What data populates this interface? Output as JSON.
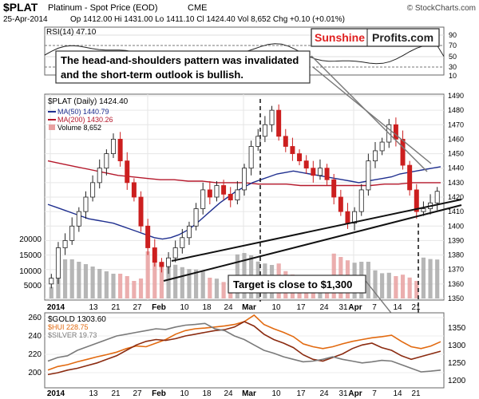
{
  "header": {
    "symbol": "$PLAT",
    "name": "Platinum - Spot Price (EOD)",
    "exchange": "CME",
    "watermark": "© StockCharts.com",
    "date": "25-Apr-2014",
    "quote": "Op 1412.00  Hi 1431.00  Lo 1411.10  Cl 1424.40  Vol 8,652  Chg +0.10 (+0.01%)"
  },
  "rsi_panel": {
    "label": "RSI(14) 47.10",
    "levels": [
      "90",
      "70",
      "50",
      "30",
      "10"
    ],
    "branding": {
      "part1": "Sunshine",
      "part2": "Profits.com"
    }
  },
  "annotations": {
    "top_line1": "The head-and-shoulders pattern was invalidated",
    "top_line2": "and the short-term outlook is bullish.",
    "target": "Target is close to $1,300"
  },
  "price_panel": {
    "legend_title": "$PLAT (Daily) 1424.40",
    "legend_ma50": "MA(50) 1440.79",
    "legend_ma200": "MA(200) 1430.26",
    "legend_volume": "Volume 8,652",
    "volume_ticks": [
      "20000",
      "15000",
      "10000",
      "5000"
    ]
  },
  "x_axis": {
    "labels": [
      "2014",
      "13",
      "21",
      "27",
      "Feb",
      "10",
      "18",
      "24",
      "Mar",
      "10",
      "17",
      "24",
      "31",
      "Apr",
      "7",
      "14",
      "21"
    ]
  },
  "bottom_panel": {
    "legend_gold": "$GOLD 1303.60",
    "legend_hui": "$HUI 228.75",
    "legend_silver": "$SILVER 19.73",
    "left_ticks": [
      "260",
      "240",
      "220",
      "200"
    ],
    "right_ticks": [
      "1350",
      "1300",
      "1250",
      "1200"
    ]
  },
  "colors": {
    "up_candle": "#ffffff",
    "down_candle": "#cc1f1f",
    "ma50": "#1f2f8f",
    "ma200": "#b5182b",
    "volume_down": "#e8a0a0",
    "volume_up": "#a9a9a9",
    "gold": "#e26a10",
    "hui": "#8b2b10",
    "silver": "#7a7a7a",
    "brand_red": "#e02020"
  },
  "chart_data": {
    "type": "line",
    "title": "$PLAT Platinum - Spot Price (EOD) CME",
    "date_range": [
      "2014-01-02",
      "2014-04-25"
    ],
    "price_ylim": [
      1350,
      1490
    ],
    "price_ticks": [
      1350,
      1360,
      1370,
      1380,
      1390,
      1400,
      1410,
      1420,
      1430,
      1440,
      1450,
      1460,
      1470,
      1480,
      1490
    ],
    "close": [
      1364,
      1385,
      1390,
      1400,
      1410,
      1420,
      1430,
      1440,
      1450,
      1460,
      1445,
      1430,
      1420,
      1400,
      1385,
      1375,
      1372,
      1378,
      1385,
      1392,
      1400,
      1412,
      1425,
      1420,
      1428,
      1422,
      1418,
      1425,
      1440,
      1455,
      1462,
      1470,
      1480,
      1462,
      1455,
      1450,
      1445,
      1440,
      1435,
      1440,
      1432,
      1420,
      1410,
      1402,
      1410,
      1425,
      1445,
      1452,
      1458,
      1470,
      1460,
      1442,
      1425,
      1410,
      1412,
      1416,
      1424
    ],
    "ma50": [
      1415,
      1413,
      1411,
      1409,
      1407,
      1405,
      1404,
      1403,
      1402,
      1400,
      1398,
      1396,
      1394,
      1392,
      1391,
      1392,
      1394,
      1397,
      1401,
      1406,
      1411,
      1416,
      1420,
      1424,
      1427,
      1430,
      1432,
      1434,
      1436,
      1437,
      1438,
      1437,
      1436,
      1435,
      1434,
      1433,
      1432,
      1431,
      1430,
      1431,
      1432,
      1433,
      1434,
      1436,
      1437,
      1438,
      1439,
      1440,
      1441
    ],
    "ma200": [
      1445,
      1443,
      1441,
      1439,
      1437,
      1435,
      1434,
      1433,
      1432,
      1432,
      1431,
      1431,
      1430,
      1430,
      1430,
      1429,
      1429,
      1429,
      1428,
      1428,
      1428,
      1428,
      1428,
      1428,
      1429,
      1429,
      1430,
      1430,
      1430
    ],
    "rsi_levels": [
      90,
      70,
      50,
      30,
      10
    ],
    "rsi_last": 47.1,
    "volume_ticks": [
      20000,
      15000,
      10000,
      5000
    ],
    "lower_panel": {
      "left_ylim": [
        190,
        270
      ],
      "right_ylim": [
        1180,
        1380
      ],
      "series": [
        {
          "name": "$GOLD",
          "last": 1303.6,
          "axis": "right",
          "values": [
            1225,
            1235,
            1240,
            1248,
            1255,
            1262,
            1268,
            1275,
            1285,
            1292,
            1290,
            1300,
            1310,
            1325,
            1335,
            1340,
            1342,
            1345,
            1348,
            1352,
            1360,
            1378,
            1352,
            1340,
            1330,
            1318,
            1298,
            1290,
            1285,
            1290,
            1298,
            1305,
            1310,
            1315,
            1318,
            1322,
            1305,
            1290,
            1285,
            1292,
            1304
          ]
        },
        {
          "name": "$HUI",
          "last": 228.75,
          "axis": "left",
          "values": [
            203,
            205,
            208,
            210,
            213,
            216,
            220,
            224,
            230,
            236,
            240,
            242,
            241,
            243,
            246,
            248,
            250,
            252,
            253,
            256,
            262,
            257,
            248,
            242,
            238,
            233,
            225,
            220,
            218,
            222,
            226,
            232,
            236,
            238,
            233,
            230,
            224,
            220,
            223,
            226,
            229
          ]
        },
        {
          "name": "$SILVER",
          "last": 19.73,
          "axis": "right",
          "values": [
            1250,
            1260,
            1265,
            1280,
            1290,
            1300,
            1310,
            1320,
            1325,
            1330,
            1335,
            1340,
            1338,
            1345,
            1350,
            1352,
            1355,
            1340,
            1335,
            1320,
            1310,
            1295,
            1280,
            1272,
            1262,
            1255,
            1248,
            1250,
            1255,
            1262,
            1255,
            1250,
            1245,
            1248,
            1252,
            1250,
            1240,
            1230,
            1220,
            1222,
            1225
          ]
        }
      ]
    }
  }
}
